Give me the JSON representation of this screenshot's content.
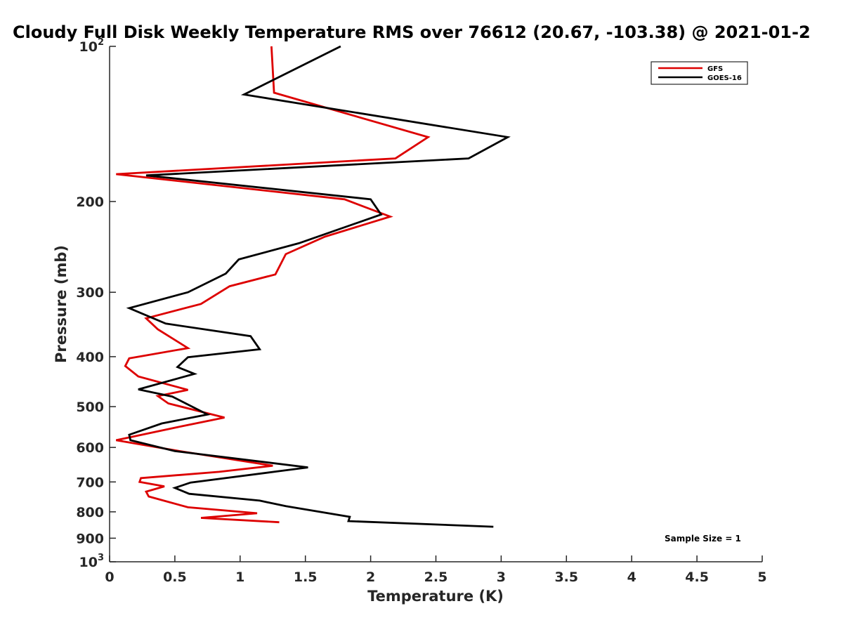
{
  "chart_data": {
    "type": "line",
    "title": "Cloudy Full Disk Weekly Temperature RMS over 76612 (20.67, -103.38) @ 2021-01-2",
    "xlabel": "Temperature (K)",
    "ylabel": "Pressure (mb)",
    "xlim": [
      0,
      5
    ],
    "ylim": [
      100,
      1000
    ],
    "yscale": "log",
    "y_reversed": true,
    "grid": false,
    "legend_location": "top-right",
    "x_ticks": [
      "0",
      "0.5",
      "1",
      "1.5",
      "2",
      "2.5",
      "3",
      "3.5",
      "4",
      "4.5",
      "5"
    ],
    "y_ticks": [
      {
        "value": 100,
        "label": "10",
        "sup": "2"
      },
      {
        "value": 200,
        "label": "200",
        "sup": ""
      },
      {
        "value": 300,
        "label": "300",
        "sup": ""
      },
      {
        "value": 400,
        "label": "400",
        "sup": ""
      },
      {
        "value": 500,
        "label": "500",
        "sup": ""
      },
      {
        "value": 600,
        "label": "600",
        "sup": ""
      },
      {
        "value": 700,
        "label": "700",
        "sup": ""
      },
      {
        "value": 800,
        "label": "800",
        "sup": ""
      },
      {
        "value": 900,
        "label": "900",
        "sup": ""
      },
      {
        "value": 1000,
        "label": "10",
        "sup": "3"
      }
    ],
    "series": [
      {
        "name": "GFS",
        "color": "#dd0000",
        "points": [
          [
            1.24,
            100
          ],
          [
            1.26,
            123
          ],
          [
            2.44,
            150
          ],
          [
            2.19,
            165
          ],
          [
            0.05,
            177
          ],
          [
            1.8,
            198
          ],
          [
            2.15,
            214
          ],
          [
            1.65,
            234
          ],
          [
            1.35,
            253
          ],
          [
            1.27,
            277
          ],
          [
            0.92,
            292
          ],
          [
            0.7,
            316
          ],
          [
            0.28,
            337
          ],
          [
            0.37,
            354
          ],
          [
            0.6,
            385
          ],
          [
            0.15,
            403
          ],
          [
            0.12,
            417
          ],
          [
            0.22,
            437
          ],
          [
            0.6,
            464
          ],
          [
            0.37,
            477
          ],
          [
            0.45,
            493
          ],
          [
            0.88,
            525
          ],
          [
            0.55,
            546
          ],
          [
            0.05,
            581
          ],
          [
            0.52,
            609
          ],
          [
            1.25,
            651
          ],
          [
            0.84,
            669
          ],
          [
            0.24,
            688
          ],
          [
            0.23,
            700
          ],
          [
            0.42,
            714
          ],
          [
            0.28,
            731
          ],
          [
            0.3,
            747
          ],
          [
            0.6,
            784
          ],
          [
            1.13,
            805
          ],
          [
            0.7,
            822
          ],
          [
            1.3,
            838
          ]
        ]
      },
      {
        "name": "GOES-16",
        "color": "#000000",
        "points": [
          [
            1.77,
            100
          ],
          [
            1.03,
            124
          ],
          [
            3.05,
            150
          ],
          [
            2.75,
            165
          ],
          [
            0.28,
            178
          ],
          [
            2.0,
            198
          ],
          [
            2.08,
            212
          ],
          [
            1.45,
            241
          ],
          [
            0.99,
            259
          ],
          [
            0.89,
            276
          ],
          [
            0.6,
            300
          ],
          [
            0.15,
            322
          ],
          [
            0.43,
            345
          ],
          [
            1.08,
            365
          ],
          [
            1.15,
            387
          ],
          [
            0.6,
            401
          ],
          [
            0.52,
            419
          ],
          [
            0.65,
            432
          ],
          [
            0.22,
            463
          ],
          [
            0.48,
            478
          ],
          [
            0.75,
            518
          ],
          [
            0.4,
            539
          ],
          [
            0.15,
            567
          ],
          [
            0.16,
            581
          ],
          [
            0.5,
            610
          ],
          [
            1.52,
            656
          ],
          [
            1.28,
            668
          ],
          [
            0.62,
            702
          ],
          [
            0.5,
            719
          ],
          [
            0.61,
            738
          ],
          [
            1.15,
            761
          ],
          [
            1.35,
            780
          ],
          [
            1.84,
            818
          ],
          [
            1.83,
            834
          ],
          [
            2.94,
            855
          ]
        ]
      }
    ],
    "annotation": "Sample Size = 1"
  }
}
